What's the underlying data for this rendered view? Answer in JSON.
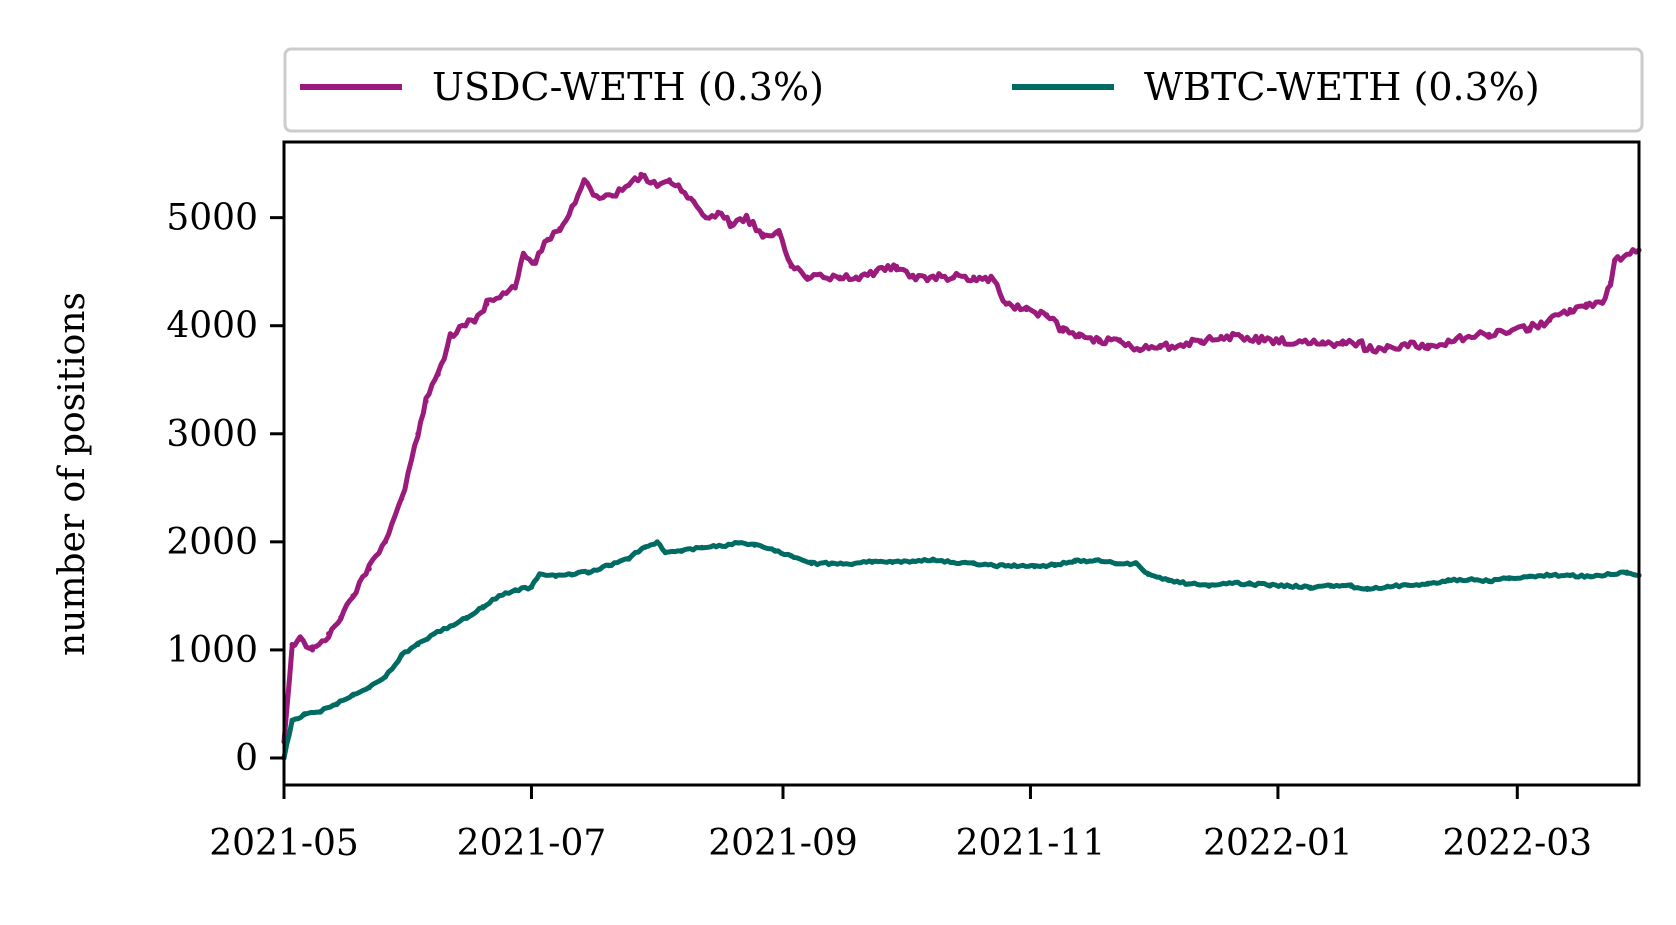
{
  "chart_data": {
    "type": "line",
    "xlabel": "",
    "ylabel": "number of positions",
    "x_range": [
      "2021-05-01",
      "2022-03-31"
    ],
    "ylim": [
      -250,
      5700
    ],
    "x_ticks": [
      {
        "date": "2021-05-01",
        "label": "2021-05"
      },
      {
        "date": "2021-07-01",
        "label": "2021-07"
      },
      {
        "date": "2021-09-01",
        "label": "2021-09"
      },
      {
        "date": "2021-11-01",
        "label": "2021-11"
      },
      {
        "date": "2022-01-01",
        "label": "2022-01"
      },
      {
        "date": "2022-03-01",
        "label": "2022-03"
      }
    ],
    "y_ticks": [
      0,
      1000,
      2000,
      3000,
      4000,
      5000
    ],
    "grid": false,
    "legend_placement": "top, above plot",
    "series": [
      {
        "name": "USDC-WETH (0.3%)",
        "color": "#9b1b7c",
        "points": [
          [
            "2021-05-01",
            150
          ],
          [
            "2021-05-03",
            1050
          ],
          [
            "2021-05-05",
            1100
          ],
          [
            "2021-05-08",
            1000
          ],
          [
            "2021-05-12",
            1150
          ],
          [
            "2021-05-15",
            1300
          ],
          [
            "2021-05-18",
            1500
          ],
          [
            "2021-05-22",
            1750
          ],
          [
            "2021-05-26",
            2000
          ],
          [
            "2021-05-30",
            2400
          ],
          [
            "2021-06-03",
            3000
          ],
          [
            "2021-06-05",
            3300
          ],
          [
            "2021-06-08",
            3550
          ],
          [
            "2021-06-11",
            3900
          ],
          [
            "2021-06-14",
            4000
          ],
          [
            "2021-06-17",
            4050
          ],
          [
            "2021-06-20",
            4200
          ],
          [
            "2021-06-24",
            4300
          ],
          [
            "2021-06-27",
            4350
          ],
          [
            "2021-06-29",
            4650
          ],
          [
            "2021-07-02",
            4600
          ],
          [
            "2021-07-05",
            4800
          ],
          [
            "2021-07-08",
            4900
          ],
          [
            "2021-07-11",
            5100
          ],
          [
            "2021-07-14",
            5350
          ],
          [
            "2021-07-17",
            5200
          ],
          [
            "2021-07-21",
            5200
          ],
          [
            "2021-07-25",
            5300
          ],
          [
            "2021-07-28",
            5400
          ],
          [
            "2021-08-01",
            5300
          ],
          [
            "2021-08-04",
            5350
          ],
          [
            "2021-08-07",
            5250
          ],
          [
            "2021-08-10",
            5150
          ],
          [
            "2021-08-13",
            5000
          ],
          [
            "2021-08-16",
            5050
          ],
          [
            "2021-08-19",
            4950
          ],
          [
            "2021-08-23",
            5000
          ],
          [
            "2021-08-27",
            4850
          ],
          [
            "2021-08-31",
            4850
          ],
          [
            "2021-09-03",
            4550
          ],
          [
            "2021-09-07",
            4450
          ],
          [
            "2021-09-11",
            4450
          ],
          [
            "2021-09-15",
            4450
          ],
          [
            "2021-09-19",
            4450
          ],
          [
            "2021-09-24",
            4500
          ],
          [
            "2021-09-29",
            4550
          ],
          [
            "2021-10-03",
            4450
          ],
          [
            "2021-10-08",
            4450
          ],
          [
            "2021-10-13",
            4450
          ],
          [
            "2021-10-18",
            4450
          ],
          [
            "2021-10-23",
            4420
          ],
          [
            "2021-10-26",
            4200
          ],
          [
            "2021-10-31",
            4150
          ],
          [
            "2021-11-05",
            4100
          ],
          [
            "2021-11-09",
            3950
          ],
          [
            "2021-11-13",
            3900
          ],
          [
            "2021-11-18",
            3850
          ],
          [
            "2021-11-23",
            3870
          ],
          [
            "2021-11-28",
            3780
          ],
          [
            "2021-12-03",
            3800
          ],
          [
            "2021-12-08",
            3820
          ],
          [
            "2021-12-13",
            3860
          ],
          [
            "2021-12-18",
            3900
          ],
          [
            "2021-12-23",
            3900
          ],
          [
            "2021-12-28",
            3870
          ],
          [
            "2022-01-02",
            3860
          ],
          [
            "2022-01-07",
            3850
          ],
          [
            "2022-01-12",
            3850
          ],
          [
            "2022-01-17",
            3830
          ],
          [
            "2022-01-21",
            3850
          ],
          [
            "2022-01-23",
            3780
          ],
          [
            "2022-01-28",
            3800
          ],
          [
            "2022-02-02",
            3820
          ],
          [
            "2022-02-07",
            3820
          ],
          [
            "2022-02-12",
            3850
          ],
          [
            "2022-02-17",
            3900
          ],
          [
            "2022-02-22",
            3920
          ],
          [
            "2022-02-27",
            3940
          ],
          [
            "2022-03-04",
            3980
          ],
          [
            "2022-03-09",
            4050
          ],
          [
            "2022-03-14",
            4150
          ],
          [
            "2022-03-18",
            4200
          ],
          [
            "2022-03-22",
            4220
          ],
          [
            "2022-03-24",
            4400
          ],
          [
            "2022-03-25",
            4600
          ],
          [
            "2022-03-31",
            4700
          ]
        ]
      },
      {
        "name": "WBTC-WETH (0.3%)",
        "color": "#006b63",
        "points": [
          [
            "2021-05-01",
            0
          ],
          [
            "2021-05-03",
            350
          ],
          [
            "2021-05-06",
            400
          ],
          [
            "2021-05-10",
            430
          ],
          [
            "2021-05-14",
            500
          ],
          [
            "2021-05-18",
            580
          ],
          [
            "2021-05-22",
            650
          ],
          [
            "2021-05-26",
            750
          ],
          [
            "2021-05-30",
            950
          ],
          [
            "2021-06-03",
            1050
          ],
          [
            "2021-06-07",
            1150
          ],
          [
            "2021-06-11",
            1220
          ],
          [
            "2021-06-15",
            1300
          ],
          [
            "2021-06-19",
            1400
          ],
          [
            "2021-06-23",
            1500
          ],
          [
            "2021-06-27",
            1550
          ],
          [
            "2021-07-01",
            1580
          ],
          [
            "2021-07-03",
            1700
          ],
          [
            "2021-07-07",
            1680
          ],
          [
            "2021-07-11",
            1700
          ],
          [
            "2021-07-15",
            1720
          ],
          [
            "2021-07-20",
            1780
          ],
          [
            "2021-07-25",
            1850
          ],
          [
            "2021-07-29",
            1950
          ],
          [
            "2021-08-01",
            2000
          ],
          [
            "2021-08-03",
            1900
          ],
          [
            "2021-08-07",
            1920
          ],
          [
            "2021-08-12",
            1950
          ],
          [
            "2021-08-17",
            1960
          ],
          [
            "2021-08-21",
            1990
          ],
          [
            "2021-08-25",
            1970
          ],
          [
            "2021-08-30",
            1920
          ],
          [
            "2021-09-03",
            1870
          ],
          [
            "2021-09-08",
            1800
          ],
          [
            "2021-09-13",
            1800
          ],
          [
            "2021-09-18",
            1790
          ],
          [
            "2021-09-23",
            1820
          ],
          [
            "2021-09-28",
            1810
          ],
          [
            "2021-10-03",
            1820
          ],
          [
            "2021-10-08",
            1830
          ],
          [
            "2021-10-13",
            1810
          ],
          [
            "2021-10-18",
            1800
          ],
          [
            "2021-10-23",
            1780
          ],
          [
            "2021-10-28",
            1780
          ],
          [
            "2021-11-02",
            1770
          ],
          [
            "2021-11-07",
            1790
          ],
          [
            "2021-11-12",
            1820
          ],
          [
            "2021-11-17",
            1830
          ],
          [
            "2021-11-22",
            1800
          ],
          [
            "2021-11-27",
            1800
          ],
          [
            "2021-11-30",
            1700
          ],
          [
            "2021-12-05",
            1650
          ],
          [
            "2021-12-10",
            1610
          ],
          [
            "2021-12-15",
            1600
          ],
          [
            "2021-12-20",
            1620
          ],
          [
            "2021-12-25",
            1610
          ],
          [
            "2021-12-30",
            1600
          ],
          [
            "2022-01-04",
            1590
          ],
          [
            "2022-01-09",
            1580
          ],
          [
            "2022-01-14",
            1590
          ],
          [
            "2022-01-19",
            1590
          ],
          [
            "2022-01-23",
            1560
          ],
          [
            "2022-01-28",
            1590
          ],
          [
            "2022-02-02",
            1600
          ],
          [
            "2022-02-07",
            1610
          ],
          [
            "2022-02-12",
            1640
          ],
          [
            "2022-02-17",
            1650
          ],
          [
            "2022-02-22",
            1640
          ],
          [
            "2022-02-27",
            1660
          ],
          [
            "2022-03-04",
            1680
          ],
          [
            "2022-03-09",
            1690
          ],
          [
            "2022-03-14",
            1690
          ],
          [
            "2022-03-19",
            1680
          ],
          [
            "2022-03-24",
            1700
          ],
          [
            "2022-03-28",
            1720
          ],
          [
            "2022-03-31",
            1690
          ]
        ]
      }
    ]
  }
}
